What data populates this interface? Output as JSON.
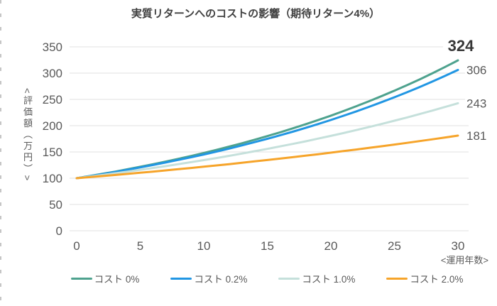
{
  "chart": {
    "title": "実質リターンへのコストの影響（期待リターン4%）",
    "y_axis_title": "<評価額（万円）>",
    "x_axis_title": "<運用年数>"
  },
  "chart_data": {
    "type": "line",
    "title": "実質リターンへのコストの影響（期待リターン4%）",
    "xlabel": "<運用年数>",
    "ylabel": "<評価額（万円）>",
    "xlim": [
      0,
      30
    ],
    "ylim": [
      0,
      350
    ],
    "x_ticks": [
      0,
      5,
      10,
      15,
      20,
      25,
      30
    ],
    "y_ticks": [
      0,
      50,
      100,
      150,
      200,
      250,
      300,
      350
    ],
    "grid": true,
    "legend_position": "bottom",
    "x": [
      0,
      1,
      2,
      3,
      4,
      5,
      6,
      7,
      8,
      9,
      10,
      11,
      12,
      13,
      14,
      15,
      16,
      17,
      18,
      19,
      20,
      21,
      22,
      23,
      24,
      25,
      26,
      27,
      28,
      29,
      30
    ],
    "series": [
      {
        "name": "コスト 0%",
        "color": "#4EA28E",
        "end_label": "324",
        "emphasized": true,
        "values": [
          100,
          104,
          108.2,
          112.5,
          117,
          121.7,
          126.5,
          131.6,
          136.9,
          142.3,
          148,
          153.9,
          160.1,
          166.5,
          173.2,
          180.1,
          187.3,
          194.8,
          202.6,
          210.7,
          219.1,
          227.9,
          237,
          246.5,
          256.3,
          266.6,
          277.2,
          288.3,
          299.9,
          311.9,
          324.3
        ]
      },
      {
        "name": "コスト 0.2%",
        "color": "#2196E3",
        "end_label": "306",
        "emphasized": false,
        "values": [
          100,
          103.8,
          107.7,
          111.8,
          116.1,
          120.5,
          125.1,
          129.8,
          134.8,
          139.9,
          145.2,
          150.7,
          156.4,
          162.4,
          168.6,
          175,
          181.6,
          188.5,
          195.7,
          203.1,
          210.8,
          218.9,
          227.2,
          235.8,
          244.8,
          254.1,
          263.7,
          273.7,
          284.1,
          295,
          306.1
        ]
      },
      {
        "name": "コスト 1.0%",
        "color": "#C5E0DB",
        "end_label": "243",
        "emphasized": false,
        "values": [
          100,
          103,
          106.1,
          109.3,
          112.6,
          115.9,
          119.4,
          123,
          126.7,
          130.5,
          134.4,
          138.4,
          142.6,
          146.9,
          151.3,
          155.8,
          160.5,
          165.3,
          170.2,
          175.4,
          180.6,
          186,
          191.6,
          197.4,
          203.3,
          209.4,
          215.7,
          222.1,
          228.8,
          235.7,
          242.7
        ]
      },
      {
        "name": "コスト 2.0%",
        "color": "#F6A42A",
        "end_label": "181",
        "emphasized": false,
        "values": [
          100,
          102,
          104,
          106.1,
          108.2,
          110.4,
          112.6,
          114.9,
          117.2,
          119.5,
          121.9,
          124.3,
          126.8,
          129.4,
          132,
          134.6,
          137.3,
          140,
          142.8,
          145.7,
          148.6,
          151.6,
          154.6,
          157.7,
          160.8,
          164.1,
          167.3,
          170.7,
          174.1,
          177.6,
          181.1
        ]
      }
    ],
    "colors": {
      "grid": "#E2E2E2",
      "tick_text": "#595959",
      "title_text": "#404040",
      "emphasized_label_text": "#383838"
    }
  }
}
